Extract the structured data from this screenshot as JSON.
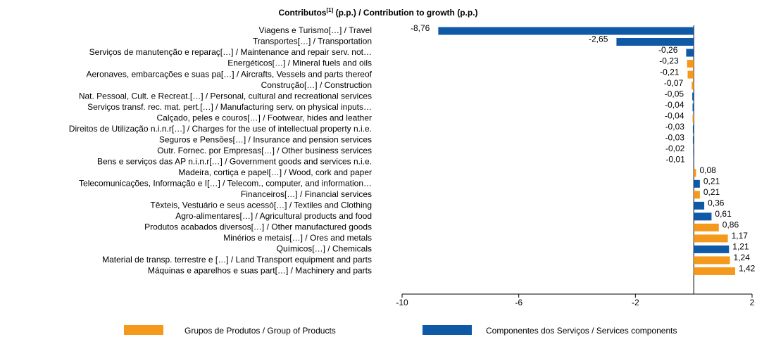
{
  "chart_data": {
    "type": "bar",
    "orientation": "horizontal",
    "title": [
      "Contributos",
      "[1]",
      " (p.p.) / Contribution to growth (p.p.)"
    ],
    "categories": [
      "Viagens e Turismo[…] / Travel",
      "Transportes[…] / Transportation",
      "Serviços de manutenção e reparaç[…] / Maintenance and repair serv. not…",
      "Energéticos[…] / Mineral fuels and oils",
      "Aeronaves, embarcações e suas pa[…] / Aircrafts, Vessels and parts thereof",
      "Construção[…] / Construction",
      "Nat. Pessoal, Cult. e Recreat.[…] / Personal, cultural and recreational services",
      "Serviços transf. rec. mat. pert.[…] / Manufacturing serv. on physical inputs…",
      "Calçado, peles e couros[…] / Footwear, hides and leather",
      "Direitos de Utilização n.i.n.r[…] / Charges for the use of intellectual property n.i.e.",
      "Seguros e Pensões[…] / Insurance and pension services",
      "Outr. Fornec. por Empresas[…] / Other business services",
      "Bens e serviços das AP n.i.n.r[…] / Government goods and services n.i.e.",
      "Madeira, cortiça e papel[…] / Wood, cork and paper",
      "Telecomunicações, Informação e I[…] / Telecom., computer, and information…",
      "Financeiros[…] / Financial services",
      "Têxteis, Vestuário e seus acessó[…] / Textiles and Clothing",
      "Agro-alimentares[…] / Agricultural products and food",
      "Produtos acabados diversos[…] / Other manufactured goods",
      "Minérios e metais[…] / Ores and metals",
      "Químicos[…] / Chemicals",
      "Material de transp. terrestre e […] / Land Transport equipment and parts",
      "Máquinas e aparelhos e suas part[…] / Machinery and parts"
    ],
    "series": [
      {
        "name": "Grupos de Produtos / Group of Products",
        "color": "#f5991c",
        "values": [
          null,
          null,
          null,
          -0.23,
          -0.21,
          -0.07,
          null,
          null,
          -0.04,
          null,
          null,
          null,
          null,
          0.08,
          null,
          0.21,
          null,
          null,
          0.86,
          1.17,
          null,
          1.24,
          1.42
        ],
        "value_labels": [
          null,
          null,
          null,
          "-0,23",
          "-0,21",
          "-0,07",
          null,
          null,
          "-0,04",
          null,
          null,
          null,
          null,
          "0,08",
          null,
          "0,21",
          null,
          null,
          "0,86",
          "1,17",
          null,
          "1,24",
          "1,42"
        ]
      },
      {
        "name": "Componentes dos Serviços / Services components",
        "color": "#0f5aa6",
        "values": [
          -8.76,
          -2.65,
          -0.26,
          null,
          null,
          null,
          -0.05,
          -0.04,
          null,
          -0.03,
          -0.03,
          -0.02,
          -0.01,
          null,
          0.21,
          null,
          0.36,
          0.61,
          null,
          null,
          1.21,
          null,
          null
        ],
        "value_labels": [
          "-8,76",
          "-2,65",
          "-0,26",
          null,
          null,
          null,
          "-0,05",
          "-0,04",
          null,
          "-0,03",
          "-0,03",
          "-0,02",
          "-0,01",
          null,
          "0,21",
          null,
          "0,36",
          "0,61",
          null,
          null,
          "1,21",
          null,
          null
        ]
      }
    ],
    "xlim": [
      -10,
      2
    ],
    "xticks": [
      -10,
      -6,
      -2,
      2
    ]
  }
}
